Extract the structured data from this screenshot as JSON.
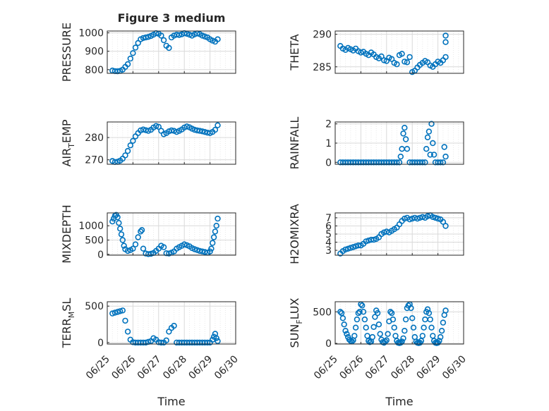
{
  "figure_title": "Figure 3 medium",
  "colors": {
    "marker": "#0072BD",
    "axes": "#262626",
    "grid": "#d9d9d9"
  },
  "x_tick_labels": [
    "06/25",
    "06/26",
    "06/27",
    "06/28",
    "06/29",
    "06/30"
  ],
  "x_axis_label": "Time",
  "chart_data": [
    {
      "type": "scatter",
      "title": "Figure 3 medium",
      "ylabel": "PRESSURE",
      "xlim": [
        0,
        5
      ],
      "ylim": [
        780,
        1010
      ],
      "yticks": [
        800,
        900,
        1000
      ],
      "grid": true,
      "x": [
        0.2,
        0.3,
        0.4,
        0.5,
        0.6,
        0.7,
        0.8,
        0.9,
        1.0,
        1.1,
        1.2,
        1.3,
        1.4,
        1.5,
        1.6,
        1.7,
        1.8,
        1.9,
        2.0,
        2.1,
        2.2,
        2.3,
        2.4,
        2.5,
        2.6,
        2.7,
        2.8,
        2.9,
        3.0,
        3.1,
        3.2,
        3.3,
        3.4,
        3.5,
        3.6,
        3.7,
        3.8,
        3.9,
        4.0,
        4.1,
        4.2,
        4.3
      ],
      "y": [
        795,
        792,
        791,
        793,
        800,
        815,
        830,
        860,
        890,
        920,
        945,
        965,
        972,
        975,
        978,
        983,
        990,
        998,
        995,
        985,
        960,
        930,
        918,
        975,
        985,
        990,
        988,
        992,
        998,
        995,
        990,
        985,
        992,
        997,
        993,
        985,
        980,
        975,
        965,
        958,
        952,
        965
      ]
    },
    {
      "type": "scatter",
      "ylabel": "THETA",
      "xlim": [
        0,
        5
      ],
      "ylim": [
        284,
        290.5
      ],
      "yticks": [
        285,
        290
      ],
      "grid": true,
      "x": [
        0.2,
        0.3,
        0.4,
        0.5,
        0.6,
        0.7,
        0.8,
        0.9,
        1.0,
        1.1,
        1.2,
        1.3,
        1.4,
        1.5,
        1.6,
        1.7,
        1.8,
        1.9,
        2.0,
        2.1,
        2.2,
        2.3,
        2.4,
        2.5,
        2.6,
        2.7,
        2.8,
        2.9,
        3.0,
        3.1,
        3.2,
        3.3,
        3.4,
        3.5,
        3.6,
        3.7,
        3.8,
        3.9,
        4.0,
        4.1,
        4.2,
        4.3,
        4.3,
        4.3
      ],
      "y": [
        288.2,
        287.8,
        287.6,
        287.9,
        287.7,
        287.5,
        287.8,
        287.4,
        287.2,
        287.3,
        287.0,
        286.8,
        287.2,
        286.9,
        286.5,
        286.3,
        286.6,
        286.0,
        285.9,
        286.4,
        286.2,
        285.6,
        285.4,
        286.8,
        287.0,
        285.8,
        285.7,
        286.5,
        284.2,
        284.4,
        284.9,
        285.3,
        285.6,
        285.9,
        285.7,
        285.2,
        285.0,
        285.4,
        285.8,
        285.6,
        286.0,
        286.5,
        288.8,
        289.8
      ]
    },
    {
      "type": "scatter",
      "ylabel": "AIR_TEMP",
      "xlim": [
        0,
        5
      ],
      "ylim": [
        268,
        287
      ],
      "yticks": [
        270,
        280
      ],
      "grid": true,
      "x": [
        0.2,
        0.3,
        0.4,
        0.5,
        0.6,
        0.7,
        0.8,
        0.9,
        1.0,
        1.1,
        1.2,
        1.3,
        1.4,
        1.5,
        1.6,
        1.7,
        1.8,
        1.9,
        2.0,
        2.1,
        2.2,
        2.3,
        2.4,
        2.5,
        2.6,
        2.7,
        2.8,
        2.9,
        3.0,
        3.1,
        3.2,
        3.3,
        3.4,
        3.5,
        3.6,
        3.7,
        3.8,
        3.9,
        4.0,
        4.1,
        4.2,
        4.3
      ],
      "y": [
        269.5,
        269.0,
        269.1,
        269.6,
        270.5,
        272.0,
        274.0,
        276.5,
        278.5,
        280.5,
        282.0,
        283.2,
        283.6,
        283.3,
        283.0,
        283.5,
        284.5,
        285.2,
        284.8,
        283.0,
        281.5,
        282.0,
        282.8,
        283.2,
        283.0,
        282.5,
        283.0,
        283.6,
        284.5,
        285.0,
        284.6,
        284.0,
        283.5,
        283.2,
        283.0,
        282.8,
        282.5,
        282.2,
        282.0,
        282.5,
        283.5,
        285.5
      ]
    },
    {
      "type": "scatter",
      "ylabel": "RAINFALL",
      "xlim": [
        0,
        5
      ],
      "ylim": [
        -0.1,
        2.1
      ],
      "yticks": [
        0,
        1,
        2
      ],
      "grid": true,
      "x": [
        0.2,
        0.3,
        0.4,
        0.5,
        0.6,
        0.7,
        0.8,
        0.9,
        1.0,
        1.1,
        1.2,
        1.3,
        1.4,
        1.5,
        1.6,
        1.7,
        1.8,
        1.9,
        2.0,
        2.1,
        2.2,
        2.3,
        2.4,
        2.5,
        2.55,
        2.6,
        2.65,
        2.7,
        2.75,
        2.8,
        2.9,
        3.0,
        3.1,
        3.2,
        3.3,
        3.4,
        3.5,
        3.55,
        3.6,
        3.65,
        3.7,
        3.75,
        3.8,
        3.85,
        3.9,
        4.0,
        4.1,
        4.2,
        4.25,
        4.3
      ],
      "y": [
        0,
        0,
        0,
        0,
        0,
        0,
        0,
        0,
        0,
        0,
        0,
        0,
        0,
        0,
        0,
        0,
        0,
        0,
        0,
        0,
        0,
        0,
        0,
        0,
        0.3,
        0.7,
        1.5,
        1.8,
        1.2,
        0.7,
        0,
        0,
        0,
        0,
        0,
        0,
        0,
        0.7,
        1.3,
        1.6,
        0.4,
        2.0,
        1.0,
        0.4,
        0,
        0,
        0,
        0,
        0.8,
        0.3
      ]
    },
    {
      "type": "scatter",
      "ylabel": "MIXDEPTH",
      "xlim": [
        0,
        5
      ],
      "ylim": [
        -30,
        1450
      ],
      "yticks": [
        0,
        500,
        1000
      ],
      "grid": true,
      "x": [
        0.2,
        0.25,
        0.3,
        0.35,
        0.4,
        0.45,
        0.5,
        0.55,
        0.6,
        0.65,
        0.7,
        0.8,
        0.9,
        1.0,
        1.1,
        1.2,
        1.3,
        1.35,
        1.4,
        1.5,
        1.6,
        1.7,
        1.8,
        1.9,
        2.0,
        2.1,
        2.2,
        2.3,
        2.4,
        2.5,
        2.6,
        2.7,
        2.8,
        2.9,
        3.0,
        3.1,
        3.2,
        3.3,
        3.4,
        3.5,
        3.6,
        3.7,
        3.8,
        3.9,
        4.0,
        4.05,
        4.1,
        4.15,
        4.2,
        4.25,
        4.3
      ],
      "y": [
        1150,
        1250,
        1350,
        1380,
        1300,
        1100,
        900,
        700,
        500,
        300,
        180,
        120,
        150,
        200,
        350,
        600,
        800,
        850,
        200,
        30,
        10,
        20,
        50,
        120,
        200,
        300,
        250,
        40,
        30,
        60,
        100,
        200,
        250,
        300,
        350,
        320,
        280,
        220,
        180,
        150,
        120,
        100,
        80,
        60,
        100,
        200,
        400,
        600,
        800,
        1000,
        1250
      ]
    },
    {
      "type": "scatter",
      "ylabel": "H2OMIXRA",
      "xlim": [
        0,
        5
      ],
      "ylim": [
        2.4,
        7.6
      ],
      "yticks": [
        3,
        4,
        5,
        6,
        7
      ],
      "grid": true,
      "x": [
        0.2,
        0.3,
        0.4,
        0.5,
        0.6,
        0.7,
        0.8,
        0.9,
        1.0,
        1.1,
        1.2,
        1.3,
        1.4,
        1.5,
        1.6,
        1.7,
        1.8,
        1.9,
        2.0,
        2.1,
        2.2,
        2.3,
        2.4,
        2.5,
        2.6,
        2.7,
        2.8,
        2.9,
        3.0,
        3.1,
        3.2,
        3.3,
        3.4,
        3.5,
        3.6,
        3.7,
        3.8,
        3.9,
        4.0,
        4.1,
        4.2,
        4.3
      ],
      "y": [
        2.6,
        2.9,
        3.1,
        3.2,
        3.3,
        3.4,
        3.5,
        3.6,
        3.6,
        3.8,
        4.1,
        4.2,
        4.3,
        4.3,
        4.4,
        4.6,
        5.0,
        5.2,
        5.3,
        5.2,
        5.4,
        5.6,
        5.8,
        6.2,
        6.6,
        6.9,
        7.0,
        6.8,
        6.9,
        7.0,
        6.9,
        7.0,
        7.1,
        7.0,
        7.2,
        7.3,
        7.1,
        7.0,
        6.9,
        6.8,
        6.5,
        6.0
      ]
    },
    {
      "type": "scatter",
      "ylabel": "TERR_MSL",
      "xlim": [
        0,
        5
      ],
      "ylim": [
        -20,
        560
      ],
      "yticks": [
        0,
        500
      ],
      "grid": true,
      "x": [
        0.2,
        0.3,
        0.4,
        0.5,
        0.6,
        0.7,
        0.8,
        0.9,
        1.0,
        1.1,
        1.2,
        1.3,
        1.4,
        1.5,
        1.6,
        1.7,
        1.8,
        1.9,
        2.0,
        2.1,
        2.2,
        2.3,
        2.4,
        2.5,
        2.6,
        2.7,
        2.8,
        2.9,
        3.0,
        3.1,
        3.2,
        3.3,
        3.4,
        3.5,
        3.6,
        3.7,
        3.8,
        3.9,
        4.0,
        4.1,
        4.15,
        4.2,
        4.25,
        4.3
      ],
      "y": [
        400,
        410,
        420,
        430,
        440,
        300,
        150,
        40,
        5,
        0,
        0,
        0,
        0,
        0,
        10,
        20,
        60,
        40,
        5,
        0,
        0,
        30,
        150,
        200,
        230,
        0,
        0,
        0,
        0,
        0,
        0,
        0,
        0,
        0,
        0,
        0,
        0,
        0,
        0,
        40,
        80,
        120,
        60,
        20
      ]
    },
    {
      "type": "scatter",
      "ylabel": "SUN_FLUX",
      "xlim": [
        0,
        5
      ],
      "ylim": [
        -10,
        660
      ],
      "yticks": [
        0,
        500
      ],
      "grid": true,
      "x": [
        0.2,
        0.25,
        0.3,
        0.35,
        0.4,
        0.45,
        0.5,
        0.55,
        0.6,
        0.65,
        0.7,
        0.75,
        0.8,
        0.85,
        0.9,
        0.95,
        1.0,
        1.05,
        1.1,
        1.15,
        1.2,
        1.25,
        1.3,
        1.35,
        1.4,
        1.45,
        1.5,
        1.55,
        1.6,
        1.65,
        1.7,
        1.75,
        1.8,
        1.85,
        1.9,
        1.95,
        2.0,
        2.05,
        2.1,
        2.15,
        2.2,
        2.25,
        2.3,
        2.35,
        2.4,
        2.45,
        2.5,
        2.55,
        2.6,
        2.65,
        2.7,
        2.75,
        2.8,
        2.85,
        2.9,
        2.95,
        3.0,
        3.05,
        3.1,
        3.15,
        3.2,
        3.25,
        3.3,
        3.35,
        3.4,
        3.45,
        3.5,
        3.55,
        3.6,
        3.65,
        3.7,
        3.75,
        3.8,
        3.85,
        3.9,
        3.95,
        4.0,
        4.05,
        4.1,
        4.15,
        4.2,
        4.25,
        4.3
      ],
      "y": [
        500,
        480,
        400,
        300,
        200,
        150,
        100,
        60,
        40,
        30,
        50,
        120,
        250,
        380,
        480,
        500,
        620,
        600,
        500,
        380,
        250,
        120,
        40,
        20,
        30,
        100,
        260,
        420,
        520,
        480,
        300,
        150,
        60,
        20,
        10,
        30,
        50,
        150,
        350,
        500,
        480,
        380,
        250,
        120,
        40,
        10,
        5,
        10,
        30,
        80,
        200,
        380,
        560,
        600,
        620,
        560,
        400,
        250,
        100,
        30,
        10,
        5,
        10,
        40,
        120,
        250,
        380,
        500,
        540,
        480,
        380,
        250,
        120,
        40,
        10,
        5,
        10,
        40,
        100,
        200,
        330,
        450,
        520
      ]
    }
  ]
}
